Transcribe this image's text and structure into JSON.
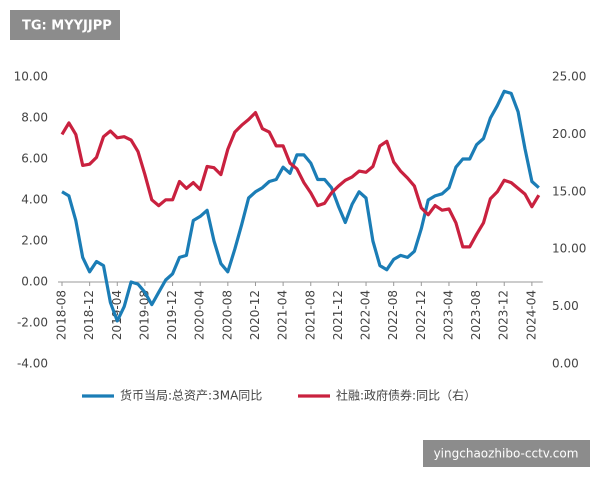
{
  "chart_data": {
    "type": "line",
    "categories": [
      "2018-08",
      null,
      null,
      null,
      "2018-12",
      null,
      null,
      null,
      "2019-04",
      null,
      null,
      null,
      "2019-08",
      null,
      null,
      null,
      "2019-12",
      null,
      null,
      null,
      "2020-04",
      null,
      null,
      null,
      "2020-08",
      null,
      null,
      null,
      "2020-12",
      null,
      null,
      null,
      "2021-04",
      null,
      null,
      null,
      "2021-08",
      null,
      null,
      null,
      "2021-12",
      null,
      null,
      null,
      "2022-04",
      null,
      null,
      null,
      "2022-08",
      null,
      null,
      null,
      "2022-12",
      null,
      null,
      null,
      "2023-04",
      null,
      null,
      null,
      "2023-08",
      null,
      null,
      null,
      "2023-12",
      null,
      null,
      null,
      "2024-04",
      null
    ],
    "series": [
      {
        "name": "货币当局:总资产:3MA同比",
        "color": "#1b7db6",
        "axis": "y",
        "values": [
          4.4,
          4.2,
          3.0,
          1.2,
          0.5,
          1.0,
          0.8,
          -1.0,
          -1.9,
          -1.2,
          0.0,
          -0.1,
          -0.5,
          -1.1,
          -0.5,
          0.1,
          0.4,
          1.2,
          1.3,
          3.0,
          3.2,
          3.5,
          2.0,
          0.9,
          0.5,
          1.6,
          2.8,
          4.1,
          4.4,
          4.6,
          4.9,
          5.0,
          5.6,
          5.3,
          6.2,
          6.2,
          5.8,
          5.0,
          5.0,
          4.6,
          3.7,
          2.9,
          3.8,
          4.4,
          4.1,
          2.0,
          0.8,
          0.6,
          1.1,
          1.3,
          1.2,
          1.5,
          2.6,
          4.0,
          4.2,
          4.3,
          4.6,
          5.6,
          6.0,
          6.0,
          6.7,
          7.0,
          8.0,
          8.6,
          9.3,
          9.2,
          8.3,
          6.5,
          4.9,
          4.6
        ]
      },
      {
        "name": "社融:政府债券:同比（右）",
        "color": "#c9213f",
        "axis": "y2",
        "values": [
          20.0,
          21.0,
          20.0,
          17.3,
          17.4,
          18.0,
          19.8,
          20.3,
          19.7,
          19.8,
          19.5,
          18.5,
          16.5,
          14.3,
          13.8,
          14.3,
          14.3,
          15.9,
          15.3,
          15.8,
          15.2,
          17.2,
          17.1,
          16.5,
          18.7,
          20.2,
          20.8,
          21.3,
          21.9,
          20.5,
          20.2,
          19.0,
          19.0,
          17.5,
          17.0,
          15.8,
          14.9,
          13.8,
          14.0,
          14.9,
          15.5,
          16.0,
          16.3,
          16.8,
          16.7,
          17.2,
          19.0,
          19.4,
          17.6,
          16.8,
          16.2,
          15.5,
          13.6,
          13.0,
          13.8,
          13.4,
          13.5,
          12.3,
          10.2,
          10.2,
          11.3,
          12.3,
          14.4,
          15.0,
          16.0,
          15.8,
          15.3,
          14.8,
          13.7,
          14.7
        ]
      }
    ],
    "ylim": [
      -4,
      10
    ],
    "yticks": [
      {
        "value": -4,
        "label": "-4.00"
      },
      {
        "value": -2,
        "label": "-2.00"
      },
      {
        "value": 0,
        "label": "0.00"
      },
      {
        "value": 2,
        "label": "2.00"
      },
      {
        "value": 4,
        "label": "4.00"
      },
      {
        "value": 6,
        "label": "6.00"
      },
      {
        "value": 8,
        "label": "8.00"
      },
      {
        "value": 10,
        "label": "10.00"
      }
    ],
    "y2lim": [
      0,
      25
    ],
    "y2ticks": [
      {
        "value": 0,
        "label": "0.00"
      },
      {
        "value": 5,
        "label": "5.00"
      },
      {
        "value": 10,
        "label": "10.00"
      },
      {
        "value": 15,
        "label": "15.00"
      },
      {
        "value": 20,
        "label": "20.00"
      },
      {
        "value": 25,
        "label": "25.00"
      }
    ],
    "grid": false
  },
  "watermarks": {
    "top": "TG: MYYJJPP",
    "bottom": "yingchaozhibo-cctv.com"
  }
}
